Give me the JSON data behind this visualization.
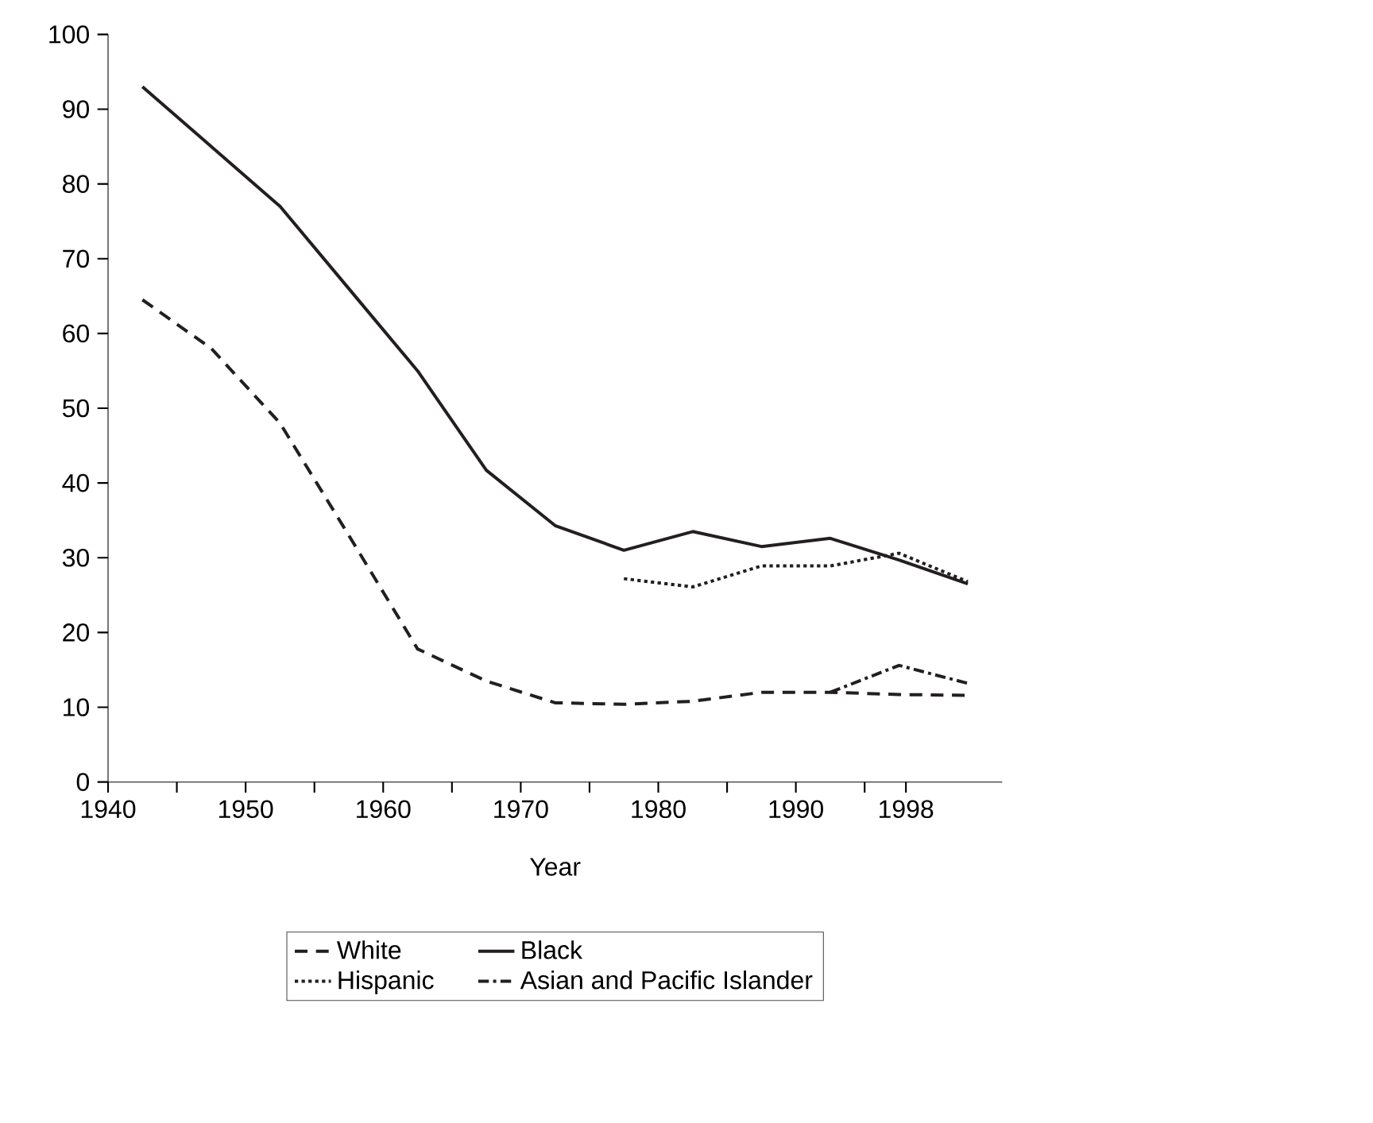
{
  "chart_data": {
    "type": "line",
    "xlabel": "Year",
    "x": [
      1942.5,
      1947.5,
      1952.5,
      1957.5,
      1962.5,
      1967.5,
      1972.5,
      1977.5,
      1982.5,
      1987.5,
      1992.5,
      1997.5,
      2002.5
    ],
    "series": [
      {
        "name": "White",
        "color": "#231f20",
        "line_style": "dashed",
        "values": [
          64.5,
          58,
          48,
          33,
          17.8,
          13.5,
          10.6,
          10.4,
          10.8,
          12,
          12,
          11.7,
          11.6
        ]
      },
      {
        "name": "Black",
        "color": "#231f20",
        "line_style": "solid",
        "values": [
          93,
          85,
          77,
          66,
          55,
          41.7,
          34.3,
          31,
          33.5,
          31.5,
          32.6,
          29.7,
          26.5
        ]
      },
      {
        "name": "Hispanic",
        "color": "#231f20",
        "line_style": "dotted",
        "values": [
          null,
          null,
          null,
          null,
          null,
          null,
          null,
          27.2,
          26.1,
          28.9,
          28.9,
          30.6,
          26.8
        ]
      },
      {
        "name": "Asian and Pacific Islander",
        "color": "#231f20",
        "line_style": "dashdot",
        "values": [
          null,
          null,
          null,
          null,
          null,
          null,
          null,
          null,
          null,
          null,
          12,
          15.6,
          13.2
        ]
      }
    ],
    "xlim": [
      1940,
      2005
    ],
    "ylim": [
      0,
      100
    ],
    "xticks": [
      1940,
      {
        "value": 1945,
        "label": null
      },
      1950,
      {
        "value": 1955,
        "label": null
      },
      1960,
      {
        "value": 1965,
        "label": null
      },
      1970,
      {
        "value": 1975,
        "label": null
      },
      1980,
      {
        "value": 1985,
        "label": null
      },
      1990,
      {
        "value": 1995,
        "label": null
      },
      1998
    ],
    "yticks": [
      0,
      10,
      20,
      30,
      40,
      50,
      60,
      70,
      80,
      90,
      100
    ],
    "legend": "bottom",
    "grid": false,
    "marker": "none"
  }
}
